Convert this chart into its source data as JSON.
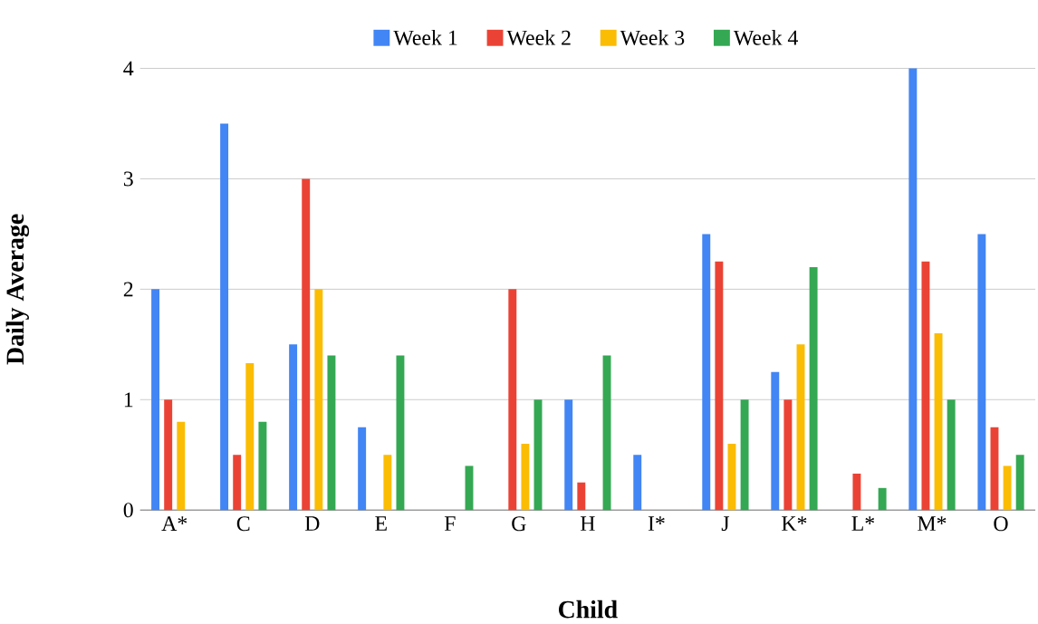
{
  "chart_data": {
    "type": "bar",
    "xlabel": "Child",
    "ylabel": "Daily Average",
    "categories": [
      "A*",
      "C",
      "D",
      "E",
      "F",
      "G",
      "H",
      "I*",
      "J",
      "K*",
      "L*",
      "M*",
      "O"
    ],
    "series": [
      {
        "name": "Week 1",
        "color": "#4285f4",
        "values": [
          2,
          3.5,
          1.5,
          0.75,
          null,
          null,
          1,
          0.5,
          2.5,
          1.25,
          null,
          4,
          2.5
        ]
      },
      {
        "name": "Week 2",
        "color": "#ea4335",
        "values": [
          1,
          0.5,
          3,
          null,
          null,
          2,
          0.25,
          null,
          2.25,
          1,
          0.33,
          2.25,
          0.75
        ]
      },
      {
        "name": "Week 3",
        "color": "#fbbc04",
        "values": [
          0.8,
          1.33,
          2,
          0.5,
          null,
          0.6,
          null,
          null,
          0.6,
          1.5,
          null,
          1.6,
          0.4
        ]
      },
      {
        "name": "Week 4",
        "color": "#34a853",
        "values": [
          null,
          0.8,
          1.4,
          1.4,
          0.4,
          1,
          1.4,
          null,
          1,
          2.2,
          0.2,
          1,
          0.5
        ]
      }
    ],
    "ylim": [
      0,
      4
    ],
    "yticks": [
      0,
      1,
      2,
      3,
      4
    ],
    "grid": "y",
    "legend": "top"
  }
}
